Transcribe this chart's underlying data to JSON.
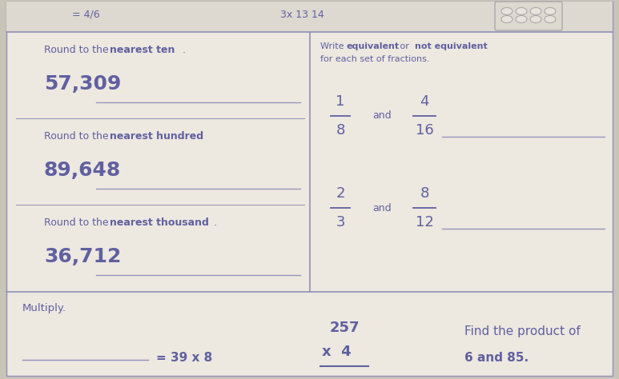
{
  "bg_outer": "#c8c4b8",
  "bg_page": "#ede8e0",
  "bg_header": "#ddd8d0",
  "text_color": "#6060a0",
  "text_light": "#8080b0",
  "line_color": "#9090b8",
  "border_color": "#9090b8",
  "top_left_text": "= 4/6",
  "top_mid_text": "3x 13 14",
  "round_ten_label_pre": "Round to the ",
  "round_ten_bold": "nearest ten",
  "number1": "57,309",
  "round_hundred_label_pre": "Round to the ",
  "round_hundred_bold": "nearest hundred",
  "number2": "89,648",
  "round_thousand_label_pre": "Round to the ",
  "round_thousand_bold": "nearest thousand",
  "number3": "36,712",
  "equiv_pre": "Write ",
  "equiv_bold1": "equivalent",
  "equiv_mid": " or ",
  "equiv_bold2": "not equivalent",
  "equiv_sub": "for each set of fractions.",
  "frac1_num": "1",
  "frac1_den": "8",
  "frac2_num": "4",
  "frac2_den": "16",
  "frac3_num": "2",
  "frac3_den": "3",
  "frac4_num": "8",
  "frac4_den": "12",
  "multiply_label": "Multiply.",
  "mult_eq": "= 39 x 8",
  "mult_vertical_top": "257",
  "mult_vertical_bot": "x  4",
  "find_product_line1": "Find the product of",
  "find_product_line2": "6 and 85."
}
